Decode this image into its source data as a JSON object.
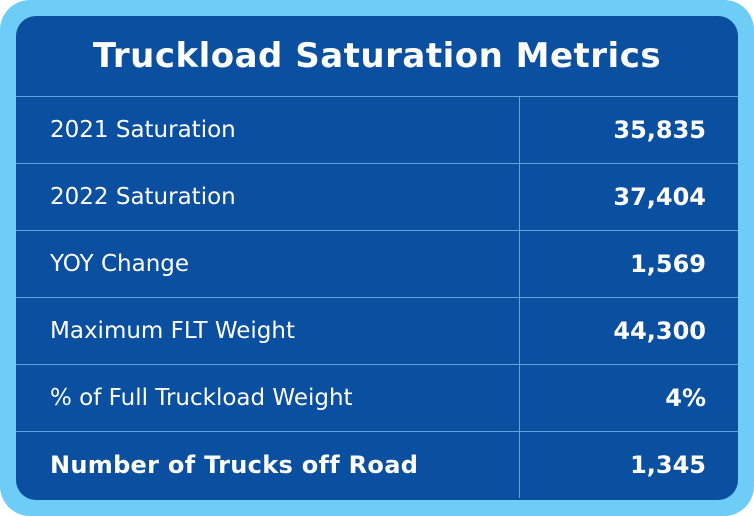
{
  "title": "Truckload Saturation Metrics",
  "rows": [
    {
      "label": "2021 Saturation",
      "value": "35,835"
    },
    {
      "label": "2022 Saturation",
      "value": "37,404"
    },
    {
      "label": "YOY Change",
      "value": "1,569"
    },
    {
      "label": "Maximum FLT Weight",
      "value": "44,300"
    },
    {
      "label": "% of Full Truckload Weight",
      "value": "4%"
    },
    {
      "label": "Number of Trucks off Road",
      "value": "1,345"
    }
  ],
  "colors": {
    "frame": "#6dcdf6",
    "panel": "#0a4fa0",
    "grid": "#5aa6e3",
    "text": "#ffffff"
  }
}
